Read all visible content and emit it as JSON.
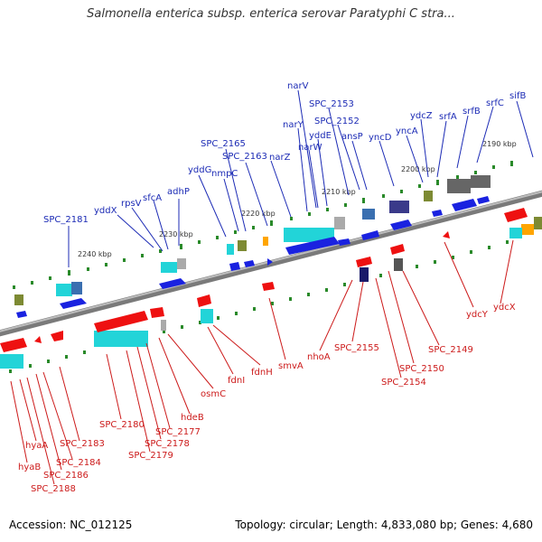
{
  "title": "Salmonella enterica subsp. enterica serovar Paratyphi C stra...",
  "footer": {
    "accession": "Accession: NC_012125",
    "summary": "Topology: circular; Length: 4,833,080 bp; Genes: 4,680"
  },
  "colors": {
    "forward_gene": "#1a22e0",
    "reverse_gene": "#ee1111",
    "label_forward": "#1c2bb5",
    "label_reverse": "#cc1a1a",
    "backbone": "#888888"
  },
  "scale_labels": [
    "2240 kbp",
    "2230 kbp",
    "2220 kbp",
    "2210 kbp",
    "2200 kbp",
    "2190 kbp"
  ],
  "forward_labels": [
    "SPC_2181",
    "yddX",
    "rpsV",
    "sfcA",
    "adhP",
    "yddG",
    "nmpC",
    "SPC_2165",
    "SPC_2163",
    "narZ",
    "narY",
    "narV",
    "narW",
    "yddE",
    "SPC_2153",
    "SPC_2152",
    "ansP",
    "yncD",
    "yncA",
    "ydcZ",
    "srfA",
    "srfB",
    "srfC",
    "sifB"
  ],
  "reverse_labels": [
    "hyaB",
    "hyaA",
    "SPC_2188",
    "SPC_2186",
    "SPC_2184",
    "SPC_2183",
    "SPC_2180",
    "SPC_2179",
    "SPC_2178",
    "SPC_2177",
    "hdeB",
    "osmC",
    "fdnI",
    "fdnH",
    "smvA",
    "nhoA",
    "SPC_2155",
    "SPC_2154",
    "SPC_2150",
    "SPC_2149",
    "ydcY",
    "ydcX"
  ]
}
